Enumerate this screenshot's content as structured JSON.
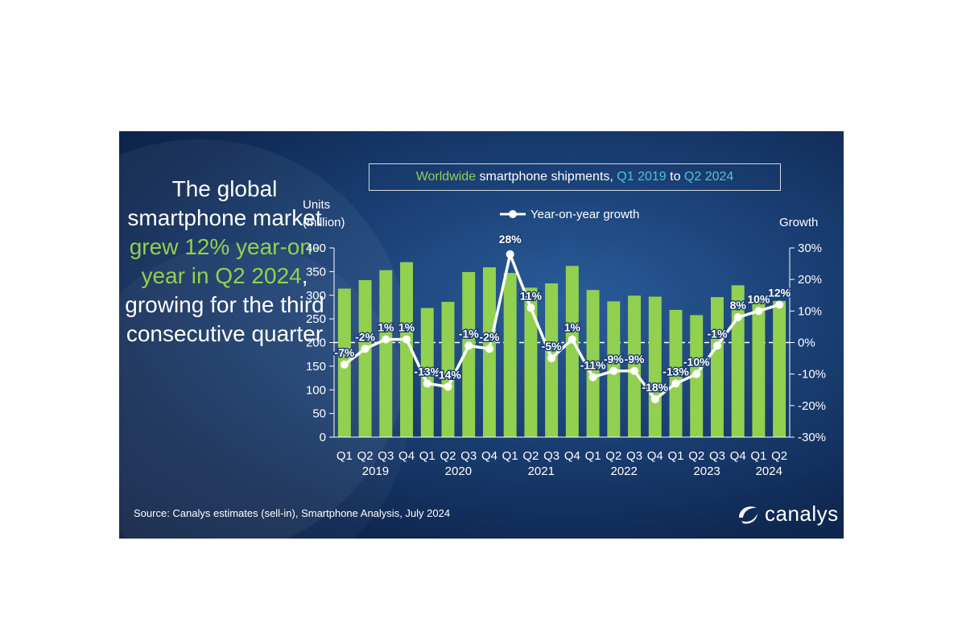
{
  "headline": {
    "part1": "The global smartphone market ",
    "highlight": "grew 12% year-on-year in Q2 2024",
    "part2": ", growing for the third consecutive quarter"
  },
  "title": {
    "part1": "Worldwide",
    "part2": " smartphone shipments, ",
    "part3": "Q1 2019",
    "part4": " to ",
    "part5": "Q2 2024"
  },
  "source": "Source: Canalys estimates (sell-in), Smartphone Analysis, July 2024",
  "logo": {
    "text": "canalys"
  },
  "colors": {
    "bar": "#92d050",
    "line": "#ffffff",
    "accent_green": "#92d050",
    "accent_cyan": "#4ec3d9",
    "background": "#15376a"
  },
  "chart_data": {
    "type": "bar+line",
    "title": "Worldwide smartphone shipments, Q1 2019 to Q2 2024",
    "ylabel_left": [
      "Units",
      "(million)"
    ],
    "ylabel_right": "Growth",
    "legend": "Year-on-year growth",
    "legend_position": "top-center",
    "ylim_left": [
      0,
      400
    ],
    "yticks_left": [
      0,
      50,
      100,
      150,
      200,
      250,
      300,
      350,
      400
    ],
    "ylim_right": [
      -30,
      30
    ],
    "yticks_right": [
      "-30%",
      "-20%",
      "-10%",
      "0%",
      "10%",
      "20%",
      "30%"
    ],
    "categories": [
      "Q1",
      "Q2",
      "Q3",
      "Q4",
      "Q1",
      "Q2",
      "Q3",
      "Q4",
      "Q1",
      "Q2",
      "Q3",
      "Q4",
      "Q1",
      "Q2",
      "Q3",
      "Q4",
      "Q1",
      "Q2",
      "Q3",
      "Q4",
      "Q1",
      "Q2"
    ],
    "years": [
      {
        "label": "2019",
        "start": 0,
        "end": 3
      },
      {
        "label": "2020",
        "start": 4,
        "end": 7
      },
      {
        "label": "2021",
        "start": 8,
        "end": 11
      },
      {
        "label": "2022",
        "start": 12,
        "end": 15
      },
      {
        "label": "2023",
        "start": 16,
        "end": 19
      },
      {
        "label": "2024",
        "start": 20,
        "end": 21
      }
    ],
    "series": [
      {
        "name": "Units (million)",
        "type": "bar",
        "values": [
          314,
          332,
          353,
          370,
          273,
          286,
          349,
          359,
          347,
          316,
          325,
          362,
          311,
          287,
          299,
          297,
          269,
          258,
          296,
          321,
          296,
          288
        ]
      },
      {
        "name": "Year-on-year growth",
        "type": "line",
        "values": [
          -7,
          -2,
          1,
          1,
          -13,
          -14,
          -1,
          -2,
          28,
          11,
          -5,
          1,
          -11,
          -9,
          -9,
          -18,
          -13,
          -10,
          -1,
          8,
          10,
          12
        ],
        "labels": [
          "-7%",
          "-2%",
          "1%",
          "1%",
          "-13%",
          "-14%",
          "-1%",
          "-2%",
          "28%",
          "11%",
          "-5%",
          "1%",
          "-11%",
          "-9%",
          "-9%",
          "-18%",
          "-13%",
          "-10%",
          "-1%",
          "8%",
          "10%",
          "12%"
        ]
      }
    ]
  }
}
